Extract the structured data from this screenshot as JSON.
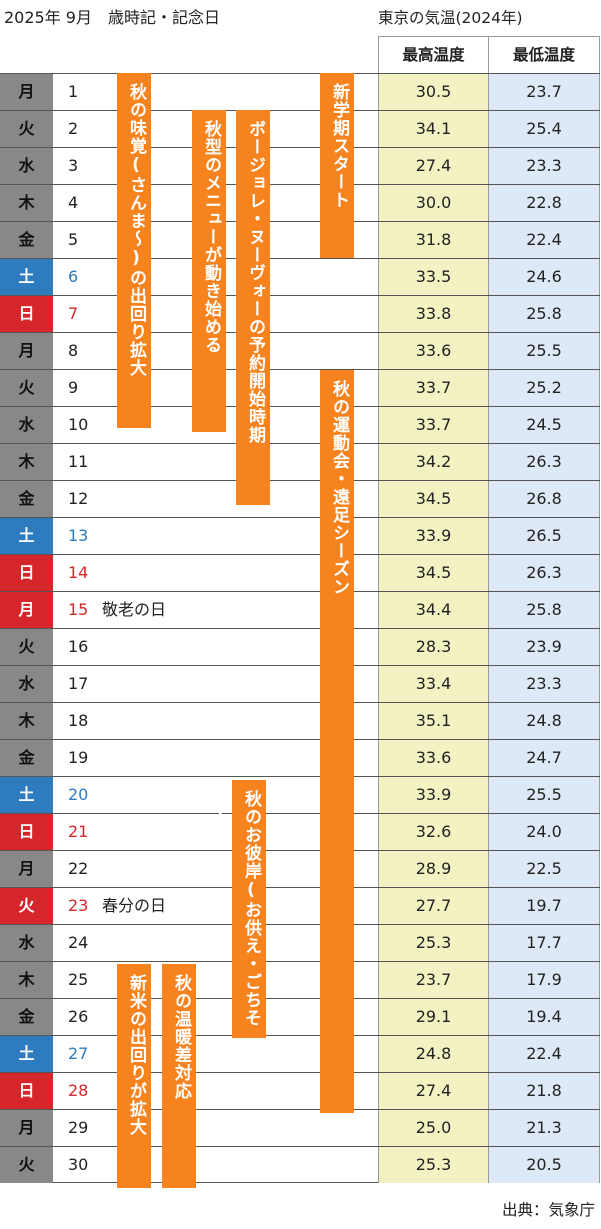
{
  "header": {
    "left": "2025年 9月　歳時記・記念日",
    "right": "東京の気温(2024年)"
  },
  "columns": {
    "high": "最高温度",
    "low": "最低温度"
  },
  "rows": [
    {
      "weekday": "月",
      "day": "1",
      "type": "weekday",
      "holiday": "",
      "high": "30.5",
      "low": "23.7"
    },
    {
      "weekday": "火",
      "day": "2",
      "type": "weekday",
      "holiday": "",
      "high": "34.1",
      "low": "25.4"
    },
    {
      "weekday": "水",
      "day": "3",
      "type": "weekday",
      "holiday": "",
      "high": "27.4",
      "low": "23.3"
    },
    {
      "weekday": "木",
      "day": "4",
      "type": "weekday",
      "holiday": "",
      "high": "30.0",
      "low": "22.8"
    },
    {
      "weekday": "金",
      "day": "5",
      "type": "weekday",
      "holiday": "",
      "high": "31.8",
      "low": "22.4"
    },
    {
      "weekday": "土",
      "day": "6",
      "type": "sat",
      "holiday": "",
      "high": "33.5",
      "low": "24.6"
    },
    {
      "weekday": "日",
      "day": "7",
      "type": "sun",
      "holiday": "",
      "high": "33.8",
      "low": "25.8"
    },
    {
      "weekday": "月",
      "day": "8",
      "type": "weekday",
      "holiday": "",
      "high": "33.6",
      "low": "25.5"
    },
    {
      "weekday": "火",
      "day": "9",
      "type": "weekday",
      "holiday": "",
      "high": "33.7",
      "low": "25.2"
    },
    {
      "weekday": "水",
      "day": "10",
      "type": "weekday",
      "holiday": "",
      "high": "33.7",
      "low": "24.5"
    },
    {
      "weekday": "木",
      "day": "11",
      "type": "weekday",
      "holiday": "",
      "high": "34.2",
      "low": "26.3"
    },
    {
      "weekday": "金",
      "day": "12",
      "type": "weekday",
      "holiday": "",
      "high": "34.5",
      "low": "26.8"
    },
    {
      "weekday": "土",
      "day": "13",
      "type": "sat",
      "holiday": "",
      "high": "33.9",
      "low": "26.5"
    },
    {
      "weekday": "日",
      "day": "14",
      "type": "sun",
      "holiday": "",
      "high": "34.5",
      "low": "26.3"
    },
    {
      "weekday": "月",
      "day": "15",
      "type": "sun",
      "holiday": "敬老の日",
      "high": "34.4",
      "low": "25.8"
    },
    {
      "weekday": "火",
      "day": "16",
      "type": "weekday",
      "holiday": "",
      "high": "28.3",
      "low": "23.9"
    },
    {
      "weekday": "水",
      "day": "17",
      "type": "weekday",
      "holiday": "",
      "high": "33.4",
      "low": "23.3"
    },
    {
      "weekday": "木",
      "day": "18",
      "type": "weekday",
      "holiday": "",
      "high": "35.1",
      "low": "24.8"
    },
    {
      "weekday": "金",
      "day": "19",
      "type": "weekday",
      "holiday": "",
      "high": "33.6",
      "low": "24.7"
    },
    {
      "weekday": "土",
      "day": "20",
      "type": "sat",
      "holiday": "",
      "high": "33.9",
      "low": "25.5"
    },
    {
      "weekday": "日",
      "day": "21",
      "type": "sun",
      "holiday": "",
      "high": "32.6",
      "low": "24.0"
    },
    {
      "weekday": "月",
      "day": "22",
      "type": "weekday",
      "holiday": "",
      "high": "28.9",
      "low": "22.5"
    },
    {
      "weekday": "火",
      "day": "23",
      "type": "sun",
      "holiday": "春分の日",
      "high": "27.7",
      "low": "19.7"
    },
    {
      "weekday": "水",
      "day": "24",
      "type": "weekday",
      "holiday": "",
      "high": "25.3",
      "low": "17.7"
    },
    {
      "weekday": "木",
      "day": "25",
      "type": "weekday",
      "holiday": "",
      "high": "23.7",
      "low": "17.9"
    },
    {
      "weekday": "金",
      "day": "26",
      "type": "weekday",
      "holiday": "",
      "high": "29.1",
      "low": "19.4"
    },
    {
      "weekday": "土",
      "day": "27",
      "type": "sat",
      "holiday": "",
      "high": "24.8",
      "low": "22.4"
    },
    {
      "weekday": "日",
      "day": "28",
      "type": "sun",
      "holiday": "",
      "high": "27.4",
      "low": "21.8"
    },
    {
      "weekday": "月",
      "day": "29",
      "type": "weekday",
      "holiday": "",
      "high": "25.0",
      "low": "21.3"
    },
    {
      "weekday": "火",
      "day": "30",
      "type": "weekday",
      "holiday": "",
      "high": "25.3",
      "low": "20.5"
    }
  ],
  "events": [
    {
      "label": "秋の味覚(さんま〜)の出回り拡大",
      "start_day": 1,
      "end_day": 9
    },
    {
      "label": "秋型のメニューが動き始める",
      "start_day": 2,
      "end_day": 10
    },
    {
      "label": "ボージョレ・ヌーヴォーの予約開始時期",
      "start_day": 2,
      "end_day": 12
    },
    {
      "label": "新学期スタート",
      "start_day": 1,
      "end_day": 5
    },
    {
      "label": "秋の運動会・遠足シーズン",
      "start_day": 9,
      "end_day": 28
    },
    {
      "label": "秋のお彼岸(お供え・ごちそう)",
      "start_day": 20,
      "end_day": 26
    },
    {
      "label": "新米の出回りが拡大",
      "start_day": 25,
      "end_day": 30
    },
    {
      "label": "秋の温暖差対応",
      "start_day": 25,
      "end_day": 30
    }
  ],
  "colors": {
    "saturday": "#2e7bbf",
    "sunday_holiday": "#d6262b",
    "weekday_cell": "#888888",
    "event_bar": "#f7831f",
    "high_col": "#f2f2c2",
    "low_col": "#dde9f6"
  },
  "source": "出典：気象庁"
}
